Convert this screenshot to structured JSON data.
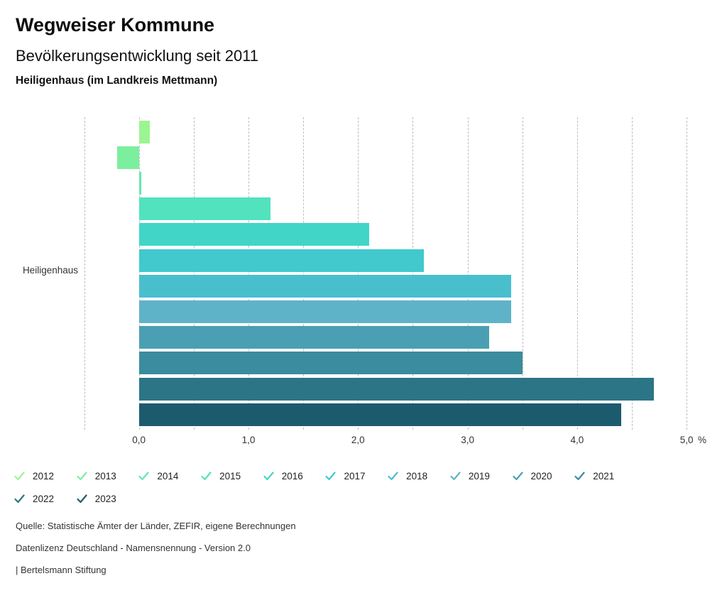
{
  "header": {
    "title": "Wegweiser Kommune",
    "subtitle": "Bevölkerungsentwicklung seit 2011",
    "region": "Heiligenhaus (im Landkreis Mettmann)"
  },
  "chart_data": {
    "type": "bar",
    "orientation": "horizontal",
    "title": "Bevölkerungsentwicklung seit 2011",
    "category_label": "Heiligenhaus",
    "unit": "%",
    "xlim": [
      -0.5,
      5.0
    ],
    "gridline_step": 0.5,
    "grid": true,
    "legend_position": "bottom",
    "ticks": [
      {
        "value": 0,
        "label": "0,0"
      },
      {
        "value": 1,
        "label": "1,0"
      },
      {
        "value": 2,
        "label": "2,0"
      },
      {
        "value": 3,
        "label": "3,0"
      },
      {
        "value": 4,
        "label": "4,0"
      },
      {
        "value": 5,
        "label": "5,0"
      }
    ],
    "series": [
      {
        "year": "2012",
        "value": 0.1,
        "color": "#9bf592"
      },
      {
        "year": "2013",
        "value": -0.2,
        "color": "#7bef9e"
      },
      {
        "year": "2014",
        "value": 0.02,
        "color": "#63e8af"
      },
      {
        "year": "2015",
        "value": 1.2,
        "color": "#52e2be"
      },
      {
        "year": "2016",
        "value": 2.1,
        "color": "#41d5c7"
      },
      {
        "year": "2017",
        "value": 2.6,
        "color": "#41c9ce"
      },
      {
        "year": "2018",
        "value": 3.4,
        "color": "#49bfce"
      },
      {
        "year": "2019",
        "value": 3.4,
        "color": "#5fb3c8"
      },
      {
        "year": "2020",
        "value": 3.2,
        "color": "#4aa0b2"
      },
      {
        "year": "2021",
        "value": 3.5,
        "color": "#3a8c9e"
      },
      {
        "year": "2022",
        "value": 4.7,
        "color": "#2b7587"
      },
      {
        "year": "2023",
        "value": 4.4,
        "color": "#1c5b6e"
      }
    ]
  },
  "footer": {
    "source": "Quelle: Statistische Ämter der Länder, ZEFIR, eigene Berechnungen",
    "license": "Datenlizenz Deutschland - Namensnennung - Version 2.0",
    "attribution": "| Bertelsmann Stiftung"
  }
}
